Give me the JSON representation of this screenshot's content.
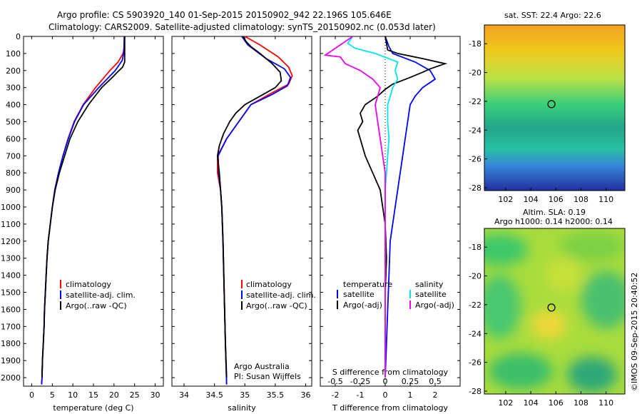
{
  "header": {
    "line1": "Argo profile: CS 5903920_140 01-Sep-2015 20150902_942 22.196S 105.646E",
    "line2": "Climatology: CARS2009. Satellite-adjusted climatology: synTS_20150902.nc (0.053d later)"
  },
  "credit": "©IMOS 09-Sep-2015 20:40:52",
  "colors": {
    "climatology": "#ff0000",
    "satellite": "#0000ff",
    "argo": "#000000",
    "sal_satellite": "#00e5ee",
    "sal_argo": "#ee00ee"
  },
  "chart_data": [
    {
      "type": "line",
      "id": "temperature",
      "xlabel": "temperature (deg C)",
      "ylabel": "",
      "xlim": [
        -2,
        32
      ],
      "ylim": [
        2050,
        0
      ],
      "xticks": [
        0,
        5,
        10,
        15,
        20,
        25,
        30
      ],
      "yticks": [
        0,
        100,
        200,
        300,
        400,
        500,
        600,
        700,
        800,
        900,
        1000,
        1100,
        1200,
        1300,
        1400,
        1500,
        1600,
        1700,
        1800,
        1900,
        2000
      ],
      "legend": [
        "climatology",
        "satellite-adj. clim.",
        "Argo(..raw -QC)"
      ],
      "series": [
        {
          "name": "climatology",
          "color": "#ff0000",
          "points": [
            [
              22.6,
              0
            ],
            [
              22.5,
              60
            ],
            [
              22.2,
              100
            ],
            [
              21.0,
              150
            ],
            [
              19.0,
              200
            ],
            [
              15.5,
              300
            ],
            [
              12.5,
              400
            ],
            [
              10.3,
              500
            ],
            [
              8.8,
              600
            ],
            [
              7.6,
              700
            ],
            [
              6.5,
              800
            ],
            [
              5.6,
              900
            ],
            [
              5.0,
              1000
            ],
            [
              4.5,
              1100
            ],
            [
              4.0,
              1200
            ],
            [
              3.7,
              1300
            ],
            [
              3.5,
              1400
            ],
            [
              3.3,
              1500
            ],
            [
              3.1,
              1600
            ],
            [
              3.0,
              1700
            ],
            [
              2.8,
              1800
            ],
            [
              2.6,
              1900
            ],
            [
              2.5,
              2000
            ],
            [
              2.4,
              2040
            ]
          ]
        },
        {
          "name": "satellite-adj. clim.",
          "color": "#0000ff",
          "points": [
            [
              22.5,
              0
            ],
            [
              22.4,
              90
            ],
            [
              22.0,
              140
            ],
            [
              20.3,
              200
            ],
            [
              16.3,
              300
            ],
            [
              12.6,
              400
            ],
            [
              10.4,
              500
            ],
            [
              8.9,
              600
            ],
            [
              7.6,
              700
            ],
            [
              6.5,
              800
            ],
            [
              5.6,
              900
            ],
            [
              5.0,
              1000
            ],
            [
              4.5,
              1100
            ],
            [
              4.0,
              1200
            ],
            [
              3.7,
              1300
            ],
            [
              3.5,
              1400
            ],
            [
              3.3,
              1500
            ],
            [
              3.1,
              1600
            ],
            [
              3.0,
              1700
            ],
            [
              2.8,
              1800
            ],
            [
              2.6,
              1900
            ],
            [
              2.5,
              2000
            ],
            [
              2.4,
              2040
            ]
          ]
        },
        {
          "name": "Argo(..raw -QC)",
          "color": "#000000",
          "points": [
            [
              22.6,
              0
            ],
            [
              22.6,
              150
            ],
            [
              22.1,
              180
            ],
            [
              20.8,
              210
            ],
            [
              19.6,
              240
            ],
            [
              17.0,
              300
            ],
            [
              13.8,
              400
            ],
            [
              11.2,
              500
            ],
            [
              9.3,
              600
            ],
            [
              8.0,
              700
            ],
            [
              6.7,
              800
            ],
            [
              5.7,
              900
            ],
            [
              5.0,
              1000
            ],
            [
              4.5,
              1100
            ],
            [
              4.0,
              1200
            ],
            [
              3.7,
              1300
            ],
            [
              3.5,
              1400
            ],
            [
              3.3,
              1500
            ],
            [
              3.1,
              1600
            ],
            [
              3.0,
              1700
            ],
            [
              2.8,
              1800
            ],
            [
              2.6,
              1900
            ],
            [
              2.5,
              2000
            ]
          ]
        }
      ]
    },
    {
      "type": "line",
      "id": "salinity",
      "xlabel": "salinity",
      "ylabel": "",
      "xlim": [
        33.8,
        36.1
      ],
      "ylim": [
        2050,
        0
      ],
      "xticks": [
        34,
        34.5,
        35,
        35.5,
        36
      ],
      "legend": [
        "climatology",
        "satellite-adj. clim.",
        "Argo(..raw -QC)"
      ],
      "annotation": [
        "Argo Australia",
        "PI: Susan Wijffels"
      ],
      "series": [
        {
          "name": "climatology",
          "color": "#ff0000",
          "points": [
            [
              35.0,
              0
            ],
            [
              35.25,
              50
            ],
            [
              35.55,
              120
            ],
            [
              35.72,
              180
            ],
            [
              35.78,
              230
            ],
            [
              35.72,
              280
            ],
            [
              35.45,
              330
            ],
            [
              35.1,
              400
            ],
            [
              34.9,
              500
            ],
            [
              34.7,
              600
            ],
            [
              34.55,
              700
            ],
            [
              34.55,
              800
            ],
            [
              34.6,
              900
            ],
            [
              34.62,
              1000
            ],
            [
              34.64,
              1200
            ],
            [
              34.66,
              1500
            ],
            [
              34.68,
              1800
            ],
            [
              34.7,
              2040
            ]
          ]
        },
        {
          "name": "satellite-adj. clim.",
          "color": "#0000ff",
          "points": [
            [
              34.95,
              0
            ],
            [
              35.05,
              50
            ],
            [
              35.35,
              130
            ],
            [
              35.65,
              190
            ],
            [
              35.75,
              240
            ],
            [
              35.7,
              290
            ],
            [
              35.45,
              340
            ],
            [
              35.1,
              400
            ],
            [
              34.9,
              500
            ],
            [
              34.7,
              600
            ],
            [
              34.56,
              700
            ],
            [
              34.57,
              800
            ],
            [
              34.6,
              900
            ],
            [
              34.62,
              1000
            ],
            [
              34.64,
              1200
            ],
            [
              34.66,
              1500
            ],
            [
              34.68,
              1800
            ],
            [
              34.7,
              2040
            ]
          ]
        },
        {
          "name": "Argo(..raw -QC)",
          "color": "#000000",
          "points": [
            [
              34.97,
              0
            ],
            [
              35.02,
              30
            ],
            [
              35.1,
              60
            ],
            [
              35.25,
              100
            ],
            [
              35.45,
              160
            ],
            [
              35.58,
              210
            ],
            [
              35.6,
              260
            ],
            [
              35.5,
              300
            ],
            [
              35.25,
              350
            ],
            [
              35.0,
              400
            ],
            [
              34.85,
              450
            ],
            [
              34.75,
              500
            ],
            [
              34.65,
              570
            ],
            [
              34.58,
              640
            ],
            [
              34.55,
              700
            ],
            [
              34.58,
              800
            ],
            [
              34.6,
              900
            ],
            [
              34.62,
              1000
            ],
            [
              34.64,
              1200
            ],
            [
              34.66,
              1500
            ],
            [
              34.68,
              1800
            ],
            [
              34.7,
              2000
            ]
          ]
        }
      ]
    },
    {
      "type": "line",
      "id": "difference",
      "xlabel": "T difference from climatology",
      "xlabel2": "S difference from climatology",
      "ylabel": "",
      "xlim": [
        -2.6,
        3.0
      ],
      "ylim": [
        2050,
        0
      ],
      "xticks": [
        -2,
        -1,
        0,
        1,
        2
      ],
      "sticks_labels": [
        "-0.5",
        "-0.25",
        "0",
        "0.25",
        "0.5"
      ],
      "sticks_pos": [
        -2,
        -1,
        0,
        1,
        2
      ],
      "legend_titles": [
        "temperature",
        "salinity"
      ],
      "legend": [
        "satellite",
        "Argo(-adj)",
        "satellite",
        "Argo(-adj)"
      ],
      "series": [
        {
          "name": "temperature satellite",
          "color": "#0000ff",
          "points": [
            [
              0,
              0
            ],
            [
              0.15,
              60
            ],
            [
              0.3,
              100
            ],
            [
              1.2,
              150
            ],
            [
              1.8,
              200
            ],
            [
              2.0,
              250
            ],
            [
              1.5,
              300
            ],
            [
              1.2,
              350
            ],
            [
              1.0,
              400
            ],
            [
              0.9,
              500
            ],
            [
              0.8,
              600
            ],
            [
              0.7,
              700
            ],
            [
              0.6,
              800
            ],
            [
              0.5,
              900
            ],
            [
              0.4,
              1000
            ],
            [
              0.3,
              1100
            ],
            [
              0.2,
              1200
            ],
            [
              0.15,
              1400
            ],
            [
              0.1,
              1600
            ],
            [
              0.05,
              1800
            ],
            [
              0,
              2000
            ]
          ]
        },
        {
          "name": "temperature Argo(-adj)",
          "color": "#000000",
          "points": [
            [
              0,
              0
            ],
            [
              0.1,
              80
            ],
            [
              0.5,
              100
            ],
            [
              1.5,
              130
            ],
            [
              2.4,
              160
            ],
            [
              1.8,
              190
            ],
            [
              1.5,
              210
            ],
            [
              1.0,
              240
            ],
            [
              0.3,
              280
            ],
            [
              0,
              310
            ],
            [
              -0.3,
              350
            ],
            [
              -0.8,
              400
            ],
            [
              -1.0,
              450
            ],
            [
              -0.9,
              500
            ],
            [
              -1.1,
              550
            ],
            [
              -1.0,
              600
            ],
            [
              -0.8,
              700
            ],
            [
              -0.5,
              800
            ],
            [
              -0.2,
              900
            ],
            [
              -0.1,
              1000
            ],
            [
              0,
              1100
            ],
            [
              0.05,
              1300
            ],
            [
              0,
              1500
            ],
            [
              0,
              1700
            ],
            [
              0,
              1900
            ],
            [
              0,
              2000
            ]
          ]
        },
        {
          "name": "salinity satellite",
          "color": "#00e5ee",
          "points": [
            [
              -1.3,
              0
            ],
            [
              -1.5,
              40
            ],
            [
              -1.2,
              70
            ],
            [
              -0.4,
              100
            ],
            [
              0.5,
              150
            ],
            [
              0.4,
              200
            ],
            [
              0.5,
              250
            ],
            [
              0.3,
              300
            ],
            [
              0.2,
              350
            ],
            [
              0.1,
              400
            ],
            [
              0.1,
              500
            ],
            [
              0.15,
              600
            ],
            [
              0.1,
              700
            ],
            [
              0.05,
              800
            ],
            [
              0,
              900
            ],
            [
              0,
              1200
            ],
            [
              0,
              1500
            ],
            [
              0,
              1800
            ],
            [
              0,
              2000
            ]
          ]
        },
        {
          "name": "salinity Argo(-adj)",
          "color": "#ee00ee",
          "points": [
            [
              -1.3,
              0
            ],
            [
              -2.4,
              110
            ],
            [
              -1.8,
              120
            ],
            [
              -1.6,
              160
            ],
            [
              -1.0,
              200
            ],
            [
              -0.5,
              250
            ],
            [
              -0.2,
              300
            ],
            [
              -0.3,
              350
            ],
            [
              -0.4,
              400
            ],
            [
              -0.3,
              500
            ],
            [
              -0.2,
              600
            ],
            [
              -0.1,
              700
            ],
            [
              0,
              800
            ],
            [
              0,
              1000
            ],
            [
              0,
              1500
            ],
            [
              0,
              2000
            ]
          ]
        }
      ]
    },
    {
      "type": "heatmap",
      "id": "sst_map",
      "title": "sat. SST: 22.4 Argo: 22.6",
      "xlim": [
        100.3,
        111.5
      ],
      "ylim": [
        -28.2,
        -16.7
      ],
      "xticks": [
        102,
        104,
        106,
        108,
        110
      ],
      "yticks": [
        -18,
        -20,
        -22,
        -24,
        -26,
        -28
      ],
      "marker": [
        105.646,
        -22.196
      ]
    },
    {
      "type": "heatmap",
      "id": "sla_map",
      "title": "Altim. SLA: 0.19",
      "subtitle": "Argo h1000: 0.14 h2000: 0.14",
      "xlim": [
        100.3,
        111.5
      ],
      "ylim": [
        -28.2,
        -16.7
      ],
      "xticks": [
        102,
        104,
        106,
        108,
        110
      ],
      "yticks": [
        -18,
        -20,
        -22,
        -24,
        -26,
        -28
      ],
      "marker": [
        105.646,
        -22.196
      ]
    }
  ]
}
